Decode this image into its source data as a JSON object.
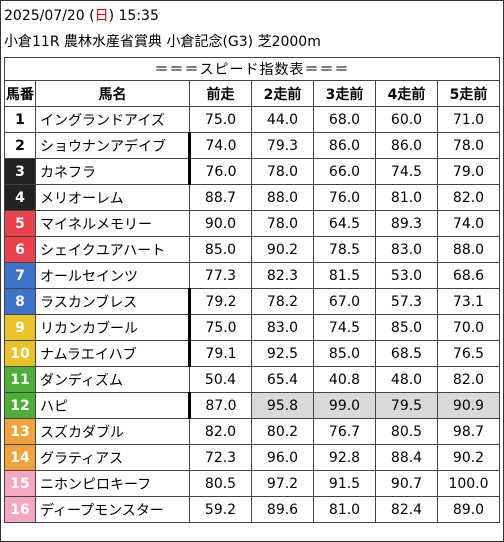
{
  "header": {
    "date_prefix": "2025/07/20 (",
    "weekday": "日",
    "date_suffix": ") 15:35",
    "race": "小倉11R 農林水産省賞典 小倉記念(G3) 芝2000m"
  },
  "table": {
    "title": "＝＝＝スピード指数表＝＝＝",
    "columns": [
      "馬番",
      "馬名",
      "前走",
      "2走前",
      "3走前",
      "4走前",
      "5走前"
    ],
    "rows": [
      {
        "num": "1",
        "name": "イングランドアイズ",
        "values": [
          "75.0",
          "44.0",
          "68.0",
          "60.0",
          "71.0"
        ],
        "bg": "#ffffff",
        "fg": "#000000",
        "highlight": false,
        "thick": false
      },
      {
        "num": "2",
        "name": "ショウナンアデイブ",
        "values": [
          "74.0",
          "79.3",
          "86.0",
          "86.0",
          "78.0"
        ],
        "bg": "#ffffff",
        "fg": "#000000",
        "highlight": false,
        "thick": true
      },
      {
        "num": "3",
        "name": "カネフラ",
        "values": [
          "76.0",
          "78.0",
          "66.0",
          "74.5",
          "79.0"
        ],
        "bg": "#222222",
        "fg": "#ffffff",
        "highlight": false,
        "thick": true
      },
      {
        "num": "4",
        "name": "メリオーレム",
        "values": [
          "88.7",
          "88.0",
          "76.0",
          "81.0",
          "82.0"
        ],
        "bg": "#222222",
        "fg": "#ffffff",
        "highlight": false,
        "thick": false
      },
      {
        "num": "5",
        "name": "マイネルメモリー",
        "values": [
          "90.0",
          "78.0",
          "64.5",
          "89.3",
          "74.0"
        ],
        "bg": "#e8434b",
        "fg": "#ffffff",
        "highlight": false,
        "thick": false
      },
      {
        "num": "6",
        "name": "シェイクユアハート",
        "values": [
          "85.0",
          "90.2",
          "78.5",
          "83.0",
          "88.0"
        ],
        "bg": "#e8434b",
        "fg": "#ffffff",
        "highlight": false,
        "thick": false
      },
      {
        "num": "7",
        "name": "オールセインツ",
        "values": [
          "77.3",
          "82.3",
          "81.5",
          "53.0",
          "68.6"
        ],
        "bg": "#3b73c7",
        "fg": "#ffffff",
        "highlight": false,
        "thick": false
      },
      {
        "num": "8",
        "name": "ラスカンブレス",
        "values": [
          "79.2",
          "78.2",
          "67.0",
          "57.3",
          "73.1"
        ],
        "bg": "#3b73c7",
        "fg": "#ffffff",
        "highlight": false,
        "thick": true
      },
      {
        "num": "9",
        "name": "リカンカブール",
        "values": [
          "75.0",
          "83.0",
          "74.5",
          "85.0",
          "70.0"
        ],
        "bg": "#e9c32a",
        "fg": "#ffffff",
        "highlight": false,
        "thick": true
      },
      {
        "num": "10",
        "name": "ナムラエイハブ",
        "values": [
          "79.1",
          "92.5",
          "85.0",
          "68.5",
          "76.5"
        ],
        "bg": "#e9c32a",
        "fg": "#ffffff",
        "highlight": false,
        "thick": true
      },
      {
        "num": "11",
        "name": "ダンディズム",
        "values": [
          "50.4",
          "65.4",
          "40.8",
          "48.0",
          "82.0"
        ],
        "bg": "#4caf3a",
        "fg": "#ffffff",
        "highlight": false,
        "thick": false
      },
      {
        "num": "12",
        "name": "ハピ",
        "values": [
          "87.0",
          "95.8",
          "99.0",
          "79.5",
          "90.9"
        ],
        "bg": "#4caf3a",
        "fg": "#ffffff",
        "highlight": true,
        "thick": true
      },
      {
        "num": "13",
        "name": "スズカダブル",
        "values": [
          "82.0",
          "80.2",
          "76.7",
          "80.5",
          "98.7"
        ],
        "bg": "#f0a33c",
        "fg": "#ffffff",
        "highlight": false,
        "thick": false
      },
      {
        "num": "14",
        "name": "グラティアス",
        "values": [
          "72.3",
          "96.0",
          "92.8",
          "88.4",
          "90.2"
        ],
        "bg": "#f0a33c",
        "fg": "#ffffff",
        "highlight": false,
        "thick": false
      },
      {
        "num": "15",
        "name": "ニホンピロキーフ",
        "values": [
          "80.5",
          "97.2",
          "91.5",
          "90.7",
          "100.0"
        ],
        "bg": "#f5a6c0",
        "fg": "#ffffff",
        "highlight": false,
        "thick": false
      },
      {
        "num": "16",
        "name": "ディープモンスター",
        "values": [
          "59.2",
          "89.6",
          "81.0",
          "82.4",
          "89.0"
        ],
        "bg": "#f5a6c0",
        "fg": "#ffffff",
        "highlight": false,
        "thick": false
      }
    ]
  }
}
